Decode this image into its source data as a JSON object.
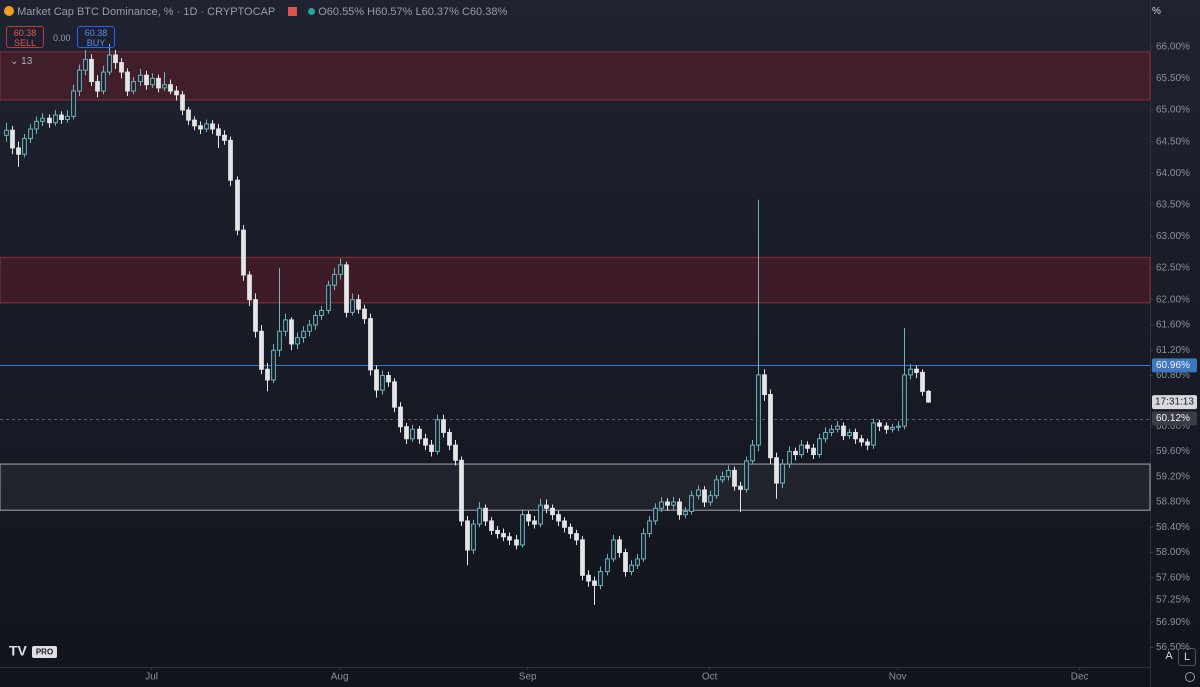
{
  "chart_data": {
    "type": "candlestick",
    "title": "Market Cap BTC Dominance, % · 1D · CRYPTOCAP",
    "ohlc_legend": [
      "O60.55%",
      "H60.57%",
      "L60.37%",
      "C60.38%"
    ],
    "trade_panel": {
      "sell_price": "60.38",
      "sell_label": "SELL",
      "spread": "0.00",
      "buy_price": "60.38",
      "buy_label": "BUY"
    },
    "indicator_count": "13",
    "axis_unit": "%",
    "countdown": "17:31:13",
    "scale_buttons": [
      "A",
      "L"
    ],
    "up_color": "#6fb3bd",
    "down_color": "#e4e5e8",
    "ylim": [
      56.19,
      66.74
    ],
    "xlim": [
      -1,
      188.6
    ],
    "yticks": [
      {
        "value": 66.0,
        "label": "66.00%"
      },
      {
        "value": 65.5,
        "label": "65.50%"
      },
      {
        "value": 65.0,
        "label": "65.00%"
      },
      {
        "value": 64.5,
        "label": "64.50%"
      },
      {
        "value": 64.0,
        "label": "64.00%"
      },
      {
        "value": 63.5,
        "label": "63.50%"
      },
      {
        "value": 63.0,
        "label": "63.00%"
      },
      {
        "value": 62.5,
        "label": "62.50%"
      },
      {
        "value": 62.0,
        "label": "62.00%"
      },
      {
        "value": 61.6,
        "label": "61.60%"
      },
      {
        "value": 61.2,
        "label": "61.20%"
      },
      {
        "value": 60.8,
        "label": "60.80%"
      },
      {
        "value": 60.0,
        "label": "60.00%"
      },
      {
        "value": 59.6,
        "label": "59.60%"
      },
      {
        "value": 59.2,
        "label": "59.20%"
      },
      {
        "value": 58.8,
        "label": "58.80%"
      },
      {
        "value": 58.4,
        "label": "58.40%"
      },
      {
        "value": 58.0,
        "label": "58.00%"
      },
      {
        "value": 57.6,
        "label": "57.60%"
      },
      {
        "value": 57.25,
        "label": "57.25%"
      },
      {
        "value": 56.9,
        "label": "56.90%"
      },
      {
        "value": 56.5,
        "label": "56.50%"
      }
    ],
    "xticks": [
      {
        "value": 24,
        "label": "Jul"
      },
      {
        "value": 55,
        "label": "Aug"
      },
      {
        "value": 86,
        "label": "Sep"
      },
      {
        "value": 116,
        "label": "Oct"
      },
      {
        "value": 147,
        "label": "Nov"
      },
      {
        "value": 177,
        "label": "Dec"
      }
    ],
    "zones": [
      {
        "low": 65.16,
        "high": 65.92,
        "fill": "rgba(120,28,40,0.38)",
        "stroke": "#8c2f3a"
      },
      {
        "low": 61.95,
        "high": 62.67,
        "fill": "rgba(120,28,40,0.38)",
        "stroke": "#8c2f3a"
      },
      {
        "low": 58.67,
        "high": 59.4,
        "fill": "rgba(255,255,255,0.05)",
        "stroke": "#a4a7b0"
      }
    ],
    "price_lines": [
      {
        "value": 60.96,
        "label": "60.96%",
        "color": "#3d78c0",
        "dashed": false
      },
      {
        "value": 60.12,
        "label": "60.12%",
        "color": "#5b5e68",
        "dashed": true
      }
    ],
    "candles": [
      [
        64.6,
        64.8,
        64.5,
        64.68
      ],
      [
        64.68,
        64.75,
        64.3,
        64.4
      ],
      [
        64.4,
        64.5,
        64.1,
        64.3
      ],
      [
        64.3,
        64.62,
        64.25,
        64.55
      ],
      [
        64.55,
        64.78,
        64.48,
        64.7
      ],
      [
        64.7,
        64.9,
        64.62,
        64.82
      ],
      [
        64.82,
        64.95,
        64.75,
        64.87
      ],
      [
        64.87,
        64.93,
        64.72,
        64.8
      ],
      [
        64.8,
        65.0,
        64.75,
        64.92
      ],
      [
        64.92,
        64.98,
        64.78,
        64.85
      ],
      [
        64.85,
        65.0,
        64.8,
        64.9
      ],
      [
        64.9,
        65.4,
        64.85,
        65.3
      ],
      [
        65.3,
        65.72,
        65.22,
        65.63
      ],
      [
        65.63,
        65.95,
        65.55,
        65.8
      ],
      [
        65.8,
        65.88,
        65.38,
        65.45
      ],
      [
        65.45,
        65.55,
        65.2,
        65.3
      ],
      [
        65.3,
        65.7,
        65.25,
        65.6
      ],
      [
        65.6,
        66.05,
        65.55,
        65.87
      ],
      [
        65.87,
        65.95,
        65.65,
        65.75
      ],
      [
        65.75,
        65.82,
        65.5,
        65.6
      ],
      [
        65.6,
        65.66,
        65.22,
        65.3
      ],
      [
        65.3,
        65.52,
        65.25,
        65.45
      ],
      [
        65.45,
        65.65,
        65.38,
        65.55
      ],
      [
        65.55,
        65.62,
        65.32,
        65.4
      ],
      [
        65.4,
        65.58,
        65.35,
        65.5
      ],
      [
        65.5,
        65.56,
        65.28,
        65.35
      ],
      [
        65.35,
        65.6,
        65.3,
        65.4
      ],
      [
        65.4,
        65.48,
        65.25,
        65.3
      ],
      [
        65.3,
        65.38,
        65.15,
        65.24
      ],
      [
        65.24,
        65.3,
        64.92,
        65.0
      ],
      [
        65.0,
        65.05,
        64.76,
        64.84
      ],
      [
        64.84,
        64.9,
        64.68,
        64.75
      ],
      [
        64.75,
        64.82,
        64.62,
        64.7
      ],
      [
        64.7,
        64.85,
        64.65,
        64.78
      ],
      [
        64.78,
        64.84,
        64.62,
        64.7
      ],
      [
        64.7,
        64.78,
        64.4,
        64.6
      ],
      [
        64.6,
        64.68,
        64.45,
        64.52
      ],
      [
        64.52,
        64.58,
        63.8,
        63.89
      ],
      [
        63.89,
        63.95,
        63.02,
        63.1
      ],
      [
        63.1,
        63.18,
        62.3,
        62.39
      ],
      [
        62.39,
        62.45,
        61.9,
        62.0
      ],
      [
        62.0,
        62.1,
        61.4,
        61.5
      ],
      [
        61.5,
        61.6,
        60.82,
        60.9
      ],
      [
        60.9,
        61.0,
        60.55,
        60.73
      ],
      [
        60.73,
        61.3,
        60.68,
        61.2
      ],
      [
        61.2,
        62.5,
        61.1,
        61.5
      ],
      [
        61.5,
        61.78,
        61.42,
        61.68
      ],
      [
        61.68,
        61.72,
        61.2,
        61.3
      ],
      [
        61.3,
        61.48,
        61.22,
        61.4
      ],
      [
        61.4,
        61.58,
        61.32,
        61.5
      ],
      [
        61.5,
        61.68,
        61.42,
        61.6
      ],
      [
        61.6,
        61.82,
        61.52,
        61.75
      ],
      [
        61.75,
        61.9,
        61.68,
        61.83
      ],
      [
        61.83,
        62.3,
        61.78,
        62.23
      ],
      [
        62.23,
        62.5,
        62.15,
        62.4
      ],
      [
        62.4,
        62.65,
        62.32,
        62.55
      ],
      [
        62.55,
        62.6,
        61.72,
        61.8
      ],
      [
        61.8,
        62.1,
        61.75,
        62.0
      ],
      [
        62.0,
        62.08,
        61.78,
        61.85
      ],
      [
        61.85,
        61.92,
        61.62,
        61.7
      ],
      [
        61.7,
        61.78,
        60.8,
        60.89
      ],
      [
        60.89,
        60.96,
        60.45,
        60.57
      ],
      [
        60.57,
        60.88,
        60.5,
        60.8
      ],
      [
        60.8,
        60.86,
        60.62,
        60.7
      ],
      [
        60.7,
        60.76,
        60.22,
        60.3
      ],
      [
        60.3,
        60.38,
        59.9,
        59.99
      ],
      [
        59.99,
        60.05,
        59.72,
        59.8
      ],
      [
        59.8,
        60.02,
        59.75,
        59.95
      ],
      [
        59.95,
        60.0,
        59.72,
        59.8
      ],
      [
        59.8,
        59.88,
        59.62,
        59.7
      ],
      [
        59.7,
        59.78,
        59.52,
        59.6
      ],
      [
        59.6,
        60.18,
        59.55,
        60.1
      ],
      [
        60.1,
        60.18,
        59.82,
        59.9
      ],
      [
        59.9,
        59.96,
        59.62,
        59.7
      ],
      [
        59.7,
        59.78,
        59.38,
        59.46
      ],
      [
        59.46,
        59.52,
        58.42,
        58.5
      ],
      [
        58.5,
        58.58,
        57.8,
        58.04
      ],
      [
        58.04,
        58.52,
        57.98,
        58.45
      ],
      [
        58.45,
        58.8,
        58.4,
        58.7
      ],
      [
        58.7,
        58.76,
        58.42,
        58.5
      ],
      [
        58.5,
        58.56,
        58.28,
        58.35
      ],
      [
        58.35,
        58.42,
        58.22,
        58.3
      ],
      [
        58.3,
        58.38,
        58.18,
        58.25
      ],
      [
        58.25,
        58.32,
        58.12,
        58.2
      ],
      [
        58.2,
        58.28,
        58.05,
        58.12
      ],
      [
        58.12,
        58.68,
        58.08,
        58.6
      ],
      [
        58.6,
        58.66,
        58.42,
        58.5
      ],
      [
        58.5,
        58.58,
        58.38,
        58.45
      ],
      [
        58.45,
        58.85,
        58.4,
        58.75
      ],
      [
        58.75,
        58.84,
        58.62,
        58.7
      ],
      [
        58.7,
        58.76,
        58.52,
        58.6
      ],
      [
        58.6,
        58.66,
        58.42,
        58.5
      ],
      [
        58.5,
        58.56,
        58.32,
        58.4
      ],
      [
        58.4,
        58.46,
        58.22,
        58.3
      ],
      [
        58.3,
        58.36,
        58.12,
        58.2
      ],
      [
        58.2,
        58.26,
        57.56,
        57.64
      ],
      [
        57.64,
        57.72,
        57.46,
        57.55
      ],
      [
        57.55,
        57.62,
        57.17,
        57.48
      ],
      [
        57.48,
        57.78,
        57.42,
        57.7
      ],
      [
        57.7,
        57.98,
        57.64,
        57.9
      ],
      [
        57.9,
        58.28,
        57.85,
        58.2
      ],
      [
        58.2,
        58.26,
        57.92,
        58.0
      ],
      [
        58.0,
        58.06,
        57.62,
        57.7
      ],
      [
        57.7,
        57.88,
        57.64,
        57.8
      ],
      [
        57.8,
        57.98,
        57.74,
        57.9
      ],
      [
        57.9,
        58.38,
        57.85,
        58.3
      ],
      [
        58.3,
        58.58,
        58.24,
        58.5
      ],
      [
        58.5,
        58.78,
        58.44,
        58.7
      ],
      [
        58.7,
        58.88,
        58.64,
        58.8
      ],
      [
        58.8,
        58.86,
        58.66,
        58.75
      ],
      [
        58.75,
        58.88,
        58.68,
        58.8
      ],
      [
        58.8,
        58.86,
        58.52,
        58.6
      ],
      [
        58.6,
        58.72,
        58.54,
        58.65
      ],
      [
        58.65,
        58.98,
        58.6,
        58.9
      ],
      [
        58.9,
        59.06,
        58.84,
        58.99
      ],
      [
        58.99,
        59.05,
        58.72,
        58.8
      ],
      [
        58.8,
        58.98,
        58.74,
        58.9
      ],
      [
        58.9,
        59.22,
        58.85,
        59.15
      ],
      [
        59.15,
        59.28,
        59.1,
        59.2
      ],
      [
        59.2,
        59.38,
        59.14,
        59.3
      ],
      [
        59.3,
        59.36,
        58.98,
        59.05
      ],
      [
        59.05,
        59.12,
        58.64,
        59.0
      ],
      [
        59.0,
        59.52,
        58.95,
        59.45
      ],
      [
        59.45,
        59.78,
        59.4,
        59.7
      ],
      [
        59.7,
        63.58,
        59.6,
        60.81
      ],
      [
        60.81,
        60.9,
        60.4,
        60.5
      ],
      [
        60.5,
        60.58,
        59.4,
        59.5
      ],
      [
        59.5,
        59.58,
        58.85,
        59.1
      ],
      [
        59.1,
        59.48,
        59.02,
        59.4
      ],
      [
        59.4,
        59.68,
        59.34,
        59.6
      ],
      [
        59.6,
        59.66,
        59.46,
        59.55
      ],
      [
        59.55,
        59.78,
        59.5,
        59.7
      ],
      [
        59.7,
        59.76,
        59.58,
        59.65
      ],
      [
        59.65,
        59.72,
        59.48,
        59.55
      ],
      [
        59.55,
        59.88,
        59.5,
        59.8
      ],
      [
        59.8,
        59.98,
        59.74,
        59.9
      ],
      [
        59.9,
        60.02,
        59.84,
        59.95
      ],
      [
        59.95,
        60.08,
        59.9,
        60.0
      ],
      [
        60.0,
        60.06,
        59.78,
        59.85
      ],
      [
        59.85,
        59.96,
        59.8,
        59.9
      ],
      [
        59.9,
        59.96,
        59.72,
        59.8
      ],
      [
        59.8,
        59.86,
        59.68,
        59.75
      ],
      [
        59.75,
        59.8,
        59.62,
        59.7
      ],
      [
        59.7,
        60.12,
        59.64,
        60.05
      ],
      [
        60.05,
        60.1,
        59.92,
        60.0
      ],
      [
        60.0,
        60.06,
        59.88,
        59.95
      ],
      [
        59.95,
        60.04,
        59.9,
        59.98
      ],
      [
        59.98,
        60.08,
        59.92,
        60.0
      ],
      [
        60.0,
        61.55,
        59.95,
        60.81
      ],
      [
        60.81,
        60.98,
        60.74,
        60.9
      ],
      [
        60.9,
        60.96,
        60.76,
        60.85
      ],
      [
        60.85,
        60.9,
        60.48,
        60.55
      ],
      [
        60.55,
        60.57,
        60.37,
        60.38
      ]
    ]
  }
}
